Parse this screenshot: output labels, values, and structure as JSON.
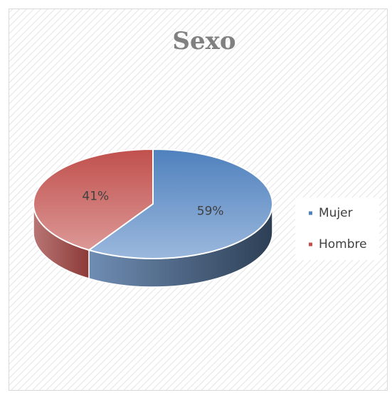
{
  "chart_data": {
    "type": "pie3d",
    "title": "Sexo",
    "categories": [
      "Mujer",
      "Hombre"
    ],
    "values": [
      59,
      41
    ],
    "value_labels": [
      "59%",
      "41%"
    ],
    "colors": [
      "#4f81bd",
      "#c0504d"
    ],
    "legend": "right"
  }
}
